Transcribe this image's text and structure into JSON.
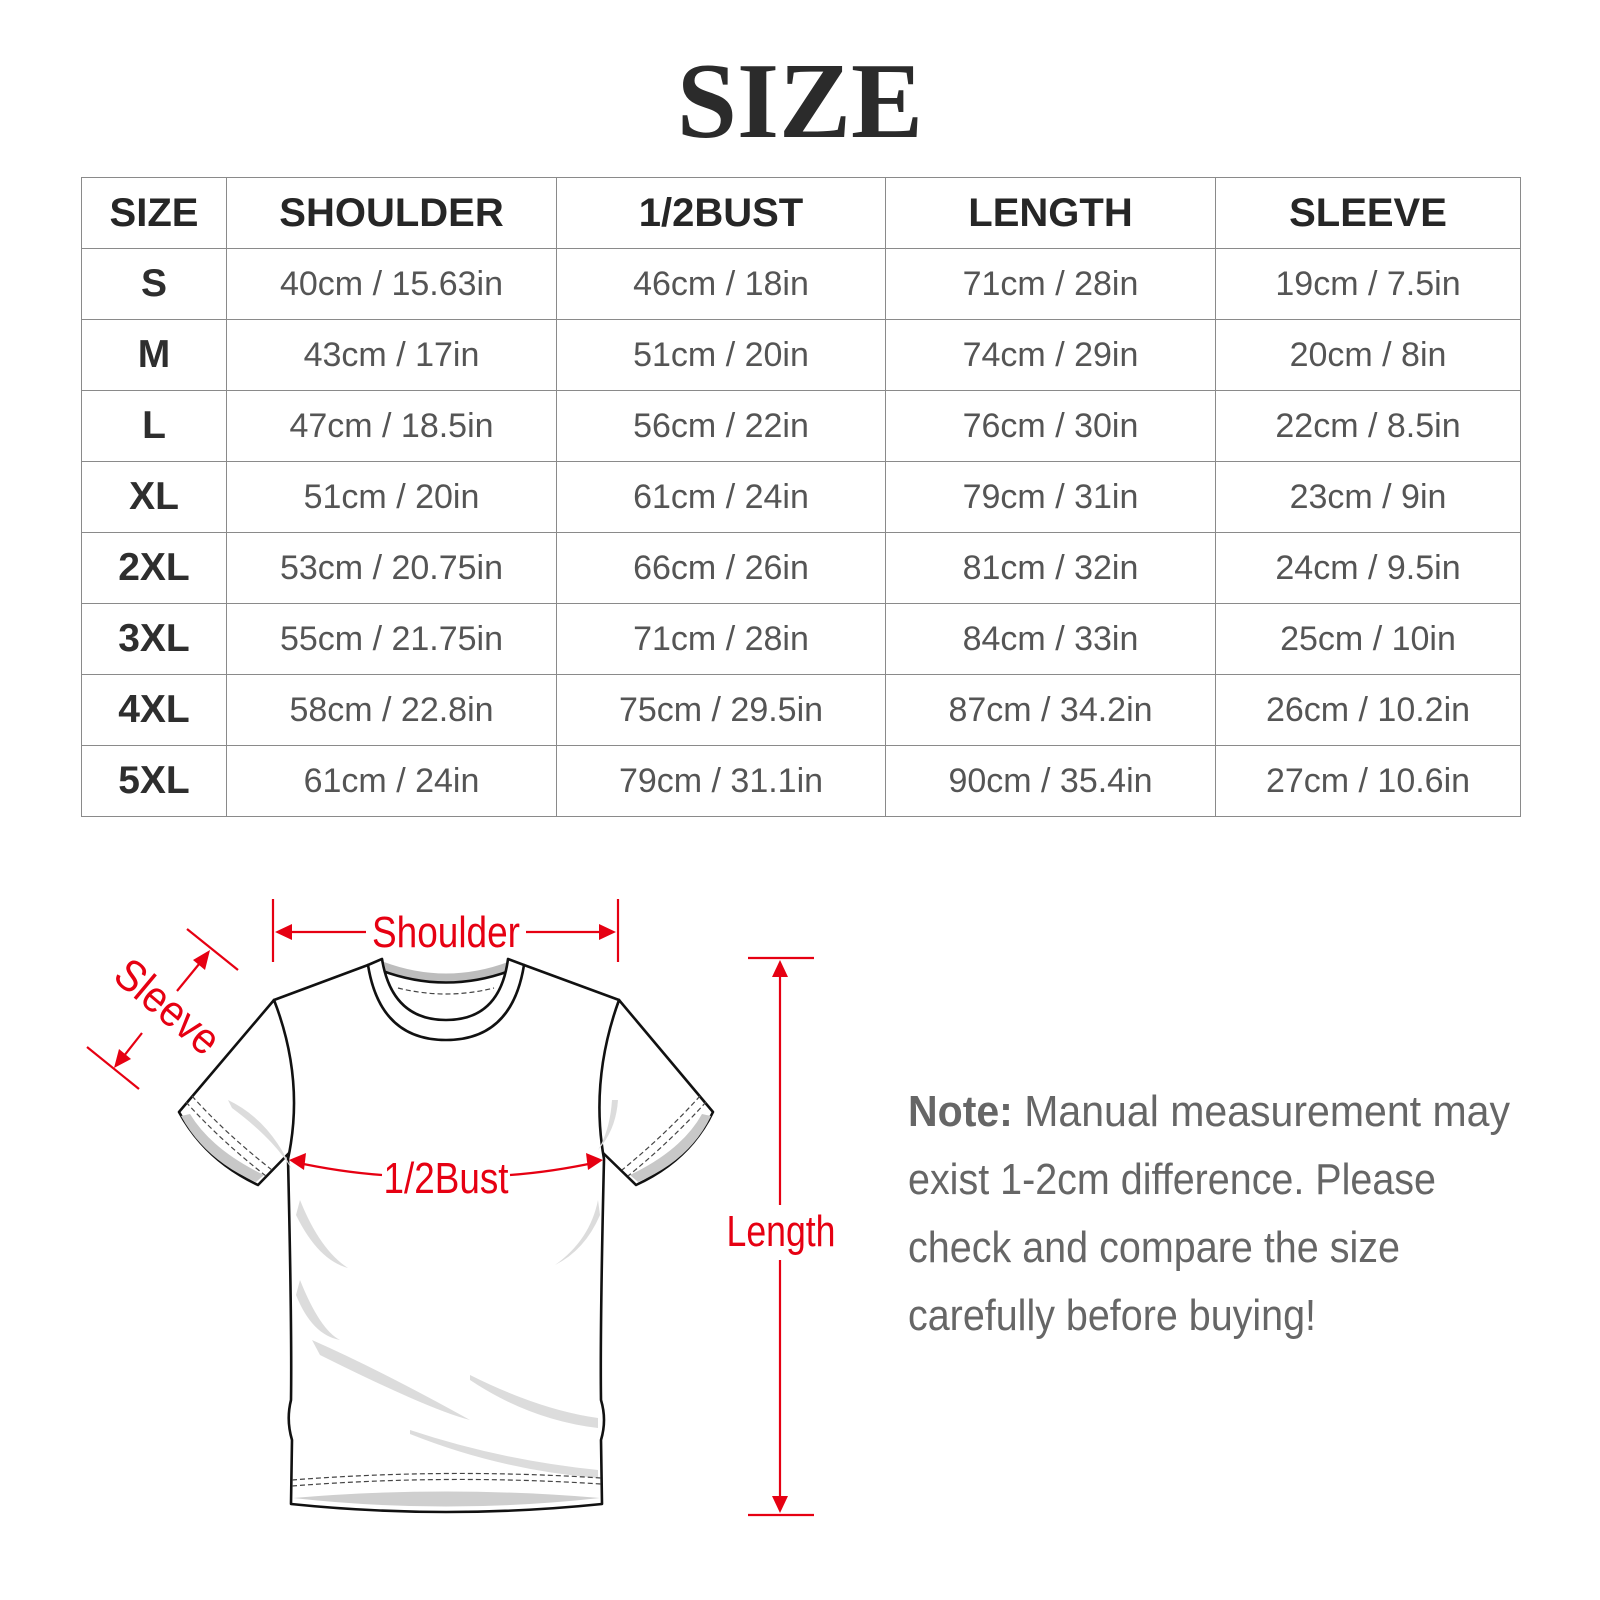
{
  "title": "SIZE",
  "table": {
    "headers": [
      "SIZE",
      "SHOULDER",
      "1/2BUST",
      "LENGTH",
      "SLEEVE"
    ],
    "rows": [
      [
        "S",
        "40cm / 15.63in",
        "46cm / 18in",
        "71cm / 28in",
        "19cm / 7.5in"
      ],
      [
        "M",
        "43cm / 17in",
        "51cm / 20in",
        "74cm / 29in",
        "20cm / 8in"
      ],
      [
        "L",
        "47cm / 18.5in",
        "56cm / 22in",
        "76cm / 30in",
        "22cm / 8.5in"
      ],
      [
        "XL",
        "51cm / 20in",
        "61cm / 24in",
        "79cm / 31in",
        "23cm / 9in"
      ],
      [
        "2XL",
        "53cm / 20.75in",
        "66cm / 26in",
        "81cm / 32in",
        "24cm / 9.5in"
      ],
      [
        "3XL",
        "55cm / 21.75in",
        "71cm / 28in",
        "84cm / 33in",
        "25cm / 10in"
      ],
      [
        "4XL",
        "58cm / 22.8in",
        "75cm / 29.5in",
        "87cm / 34.2in",
        "26cm / 10.2in"
      ],
      [
        "5XL",
        "61cm / 24in",
        "79cm / 31.1in",
        "90cm / 35.4in",
        "27cm / 10.6in"
      ]
    ]
  },
  "diagram": {
    "shoulder_label": "Shoulder",
    "sleeve_label": "Sleeve",
    "bust_label": "1/2Bust",
    "length_label": "Length",
    "measure_color": "#e60012"
  },
  "note": {
    "label": "Note:",
    "lines": [
      " Manual measurement may",
      "exist 1-2cm difference. Please",
      "check and compare the size",
      "carefully before buying!"
    ]
  }
}
